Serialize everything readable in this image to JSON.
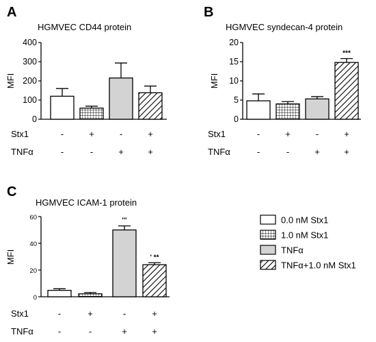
{
  "colors": {
    "gray_fill": "#d3d3d3",
    "line": "#000000",
    "white": "#ffffff"
  },
  "legend": [
    {
      "label": "0.0 nM Stx1",
      "fill": "white"
    },
    {
      "label": "1.0 nM Stx1",
      "fill": "grid"
    },
    {
      "label": "TNFα",
      "fill": "gray"
    },
    {
      "label": "TNFα+1.0 nM Stx1",
      "fill": "hatch"
    }
  ],
  "chart_data": [
    {
      "panel": "A",
      "type": "bar",
      "title": "HGMVEC CD44 protein",
      "ylabel": "MFI",
      "ylim": [
        0,
        400
      ],
      "yticks": [
        0,
        100,
        200,
        300,
        400
      ],
      "categories": [
        "0.0 nM Stx1",
        "1.0 nM Stx1",
        "TNFα",
        "TNFα+1.0 nM Stx1"
      ],
      "values": [
        120,
        58,
        215,
        138
      ],
      "errors": [
        40,
        10,
        78,
        35
      ],
      "significance": [
        "",
        "",
        "",
        ""
      ],
      "factors": [
        {
          "name": "Stx1",
          "signs": [
            "-",
            "+",
            "-",
            "+"
          ]
        },
        {
          "name": "TNFα",
          "signs": [
            "-",
            "-",
            "+",
            "+"
          ]
        }
      ]
    },
    {
      "panel": "B",
      "type": "bar",
      "title": "HGMVEC syndecan-4 protein",
      "ylabel": "MFI",
      "ylim": [
        0,
        20
      ],
      "yticks": [
        0,
        5,
        10,
        15,
        20
      ],
      "categories": [
        "0.0 nM Stx1",
        "1.0 nM Stx1",
        "TNFα",
        "TNFα+1.0 nM Stx1"
      ],
      "values": [
        4.8,
        4.0,
        5.3,
        14.8
      ],
      "errors": [
        1.8,
        0.6,
        0.6,
        1.0
      ],
      "significance": [
        "",
        "",
        "",
        "***"
      ],
      "factors": [
        {
          "name": "Stx1",
          "signs": [
            "-",
            "+",
            "-",
            "+"
          ]
        },
        {
          "name": "TNFα",
          "signs": [
            "-",
            "-",
            "+",
            "+"
          ]
        }
      ]
    },
    {
      "panel": "C",
      "type": "bar",
      "title": "HGMVEC ICAM-1 protein",
      "ylabel": "MFI",
      "ylim": [
        0,
        60
      ],
      "yticks": [
        0,
        20,
        40,
        60
      ],
      "categories": [
        "0.0 nM Stx1",
        "1.0 nM Stx1",
        "TNFα",
        "TNFα+1.0 nM Stx1"
      ],
      "values": [
        4.8,
        2.2,
        50,
        24
      ],
      "errors": [
        1.2,
        1.0,
        3.0,
        1.5
      ],
      "significance": [
        "",
        "",
        "'''",
        "' **"
      ],
      "factors": [
        {
          "name": "Stx1",
          "signs": [
            "-",
            "+",
            "-",
            "+"
          ]
        },
        {
          "name": "TNFα",
          "signs": [
            "-",
            "-",
            "+",
            "+"
          ]
        }
      ]
    }
  ]
}
